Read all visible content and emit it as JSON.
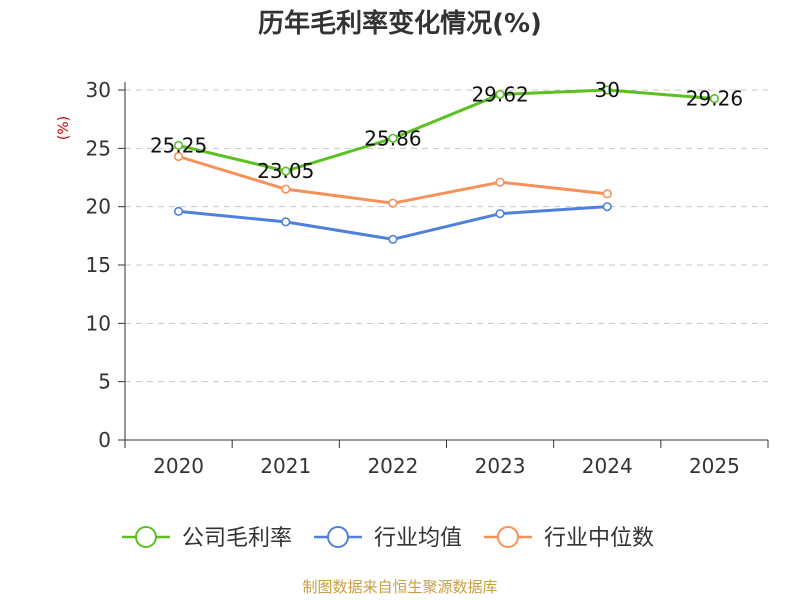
{
  "chart_data": {
    "type": "line",
    "title": "历年毛利率变化情况(%)",
    "ylabel": "(%)",
    "ylim": [
      0,
      30
    ],
    "yticks": [
      0,
      5,
      10,
      15,
      20,
      25,
      30
    ],
    "categories": [
      "2020",
      "2021",
      "2022",
      "2023",
      "2024",
      "2025"
    ],
    "grid": true,
    "legend_position": "bottom",
    "series": [
      {
        "name": "公司毛利率",
        "color": "#5cc021",
        "values": [
          25.25,
          23.05,
          25.86,
          29.62,
          30,
          29.26
        ],
        "labels": [
          "25.25",
          "23.05",
          "25.86",
          "29.62",
          "30",
          "29.26"
        ]
      },
      {
        "name": "行业均值",
        "color": "#4f81dc",
        "values": [
          19.6,
          18.7,
          17.2,
          19.4,
          20.0,
          null
        ]
      },
      {
        "name": "行业中位数",
        "color": "#f79159",
        "values": [
          24.3,
          21.5,
          20.3,
          22.1,
          21.1,
          null
        ]
      }
    ],
    "source": "制图数据来自恒生聚源数据库"
  }
}
